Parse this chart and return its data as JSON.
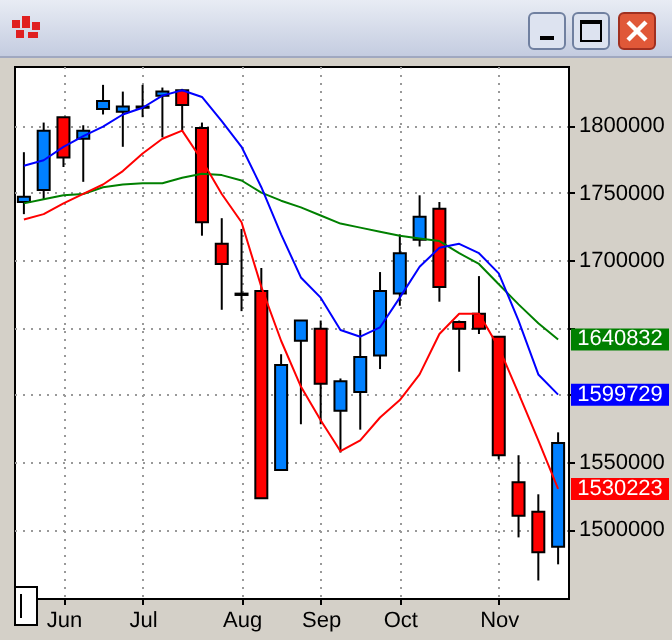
{
  "chart_data": {
    "type": "candlestick",
    "categories": [
      null,
      null,
      "Jun",
      null,
      null,
      null,
      "Jul",
      null,
      null,
      null,
      null,
      "Aug",
      null,
      null,
      null,
      "Sep",
      null,
      null,
      null,
      "Oct",
      null,
      null,
      null,
      null,
      "Nov",
      null,
      null,
      null
    ],
    "ohlc": [
      [
        1743000,
        1780000,
        1734000,
        1747000
      ],
      [
        1752000,
        1802000,
        1745000,
        1796000
      ],
      [
        1806000,
        1806000,
        1769000,
        1776000
      ],
      [
        1790000,
        1800000,
        1758000,
        1796000
      ],
      [
        1812000,
        1830000,
        1808000,
        1818000
      ],
      [
        1810000,
        1825000,
        1784000,
        1814000
      ],
      [
        1813000,
        1830000,
        1806000,
        1814000
      ],
      [
        1822000,
        1828000,
        1791000,
        1825000
      ],
      [
        1826000,
        1827000,
        1796000,
        1815000
      ],
      [
        1798000,
        1802000,
        1718000,
        1728000
      ],
      [
        1712000,
        1731000,
        1663000,
        1697000
      ],
      [
        1675000,
        1723000,
        1662000,
        1674000
      ],
      [
        1677000,
        1694000,
        1523000,
        1523000
      ],
      [
        1544000,
        1630000,
        1544000,
        1622000
      ],
      [
        1640000,
        1655000,
        1578000,
        1655000
      ],
      [
        1649000,
        1655000,
        1578000,
        1608000
      ],
      [
        1588000,
        1612000,
        1557000,
        1610000
      ],
      [
        1602000,
        1648000,
        1574000,
        1628000
      ],
      [
        1629000,
        1691000,
        1619000,
        1677000
      ],
      [
        1675000,
        1719000,
        1666000,
        1705000
      ],
      [
        1715000,
        1748000,
        1710000,
        1732000
      ],
      [
        1738000,
        1743000,
        1669000,
        1680000
      ],
      [
        1654000,
        1655000,
        1617000,
        1649000
      ],
      [
        1660000,
        1688000,
        1645000,
        1649000
      ],
      [
        1643000,
        1643000,
        1552000,
        1555000
      ],
      [
        1535000,
        1555000,
        1494000,
        1510000
      ],
      [
        1513000,
        1526000,
        1462000,
        1483000
      ],
      [
        1487000,
        1572000,
        1474000,
        1564000
      ]
    ],
    "colors": [
      "#0080ff",
      "#0080ff",
      "#ff0000",
      "#0080ff",
      "#0080ff",
      "#0080ff",
      "#0080ff",
      "#0080ff",
      "#ff0000",
      "#ff0000",
      "#ff0000",
      "#ff0000",
      "#ff0000",
      "#0080ff",
      "#0080ff",
      "#ff0000",
      "#0080ff",
      "#0080ff",
      "#0080ff",
      "#0080ff",
      "#0080ff",
      "#ff0000",
      "#ff0000",
      "#ff0000",
      "#ff0000",
      "#ff0000",
      "#ff0000",
      "#0080ff"
    ],
    "series": [
      {
        "type": "line",
        "color": "#008000",
        "values": [
          1742000,
          1745000,
          1748000,
          1749000,
          1754000,
          1756000,
          1757000,
          1757000,
          1761000,
          1764000,
          1763000,
          1759000,
          1750000,
          1744000,
          1739000,
          1733000,
          1727000,
          1724000,
          1721000,
          1718000,
          1716000,
          1714000,
          1705000,
          1697000,
          1682000,
          1667000,
          1653000,
          1641000
        ]
      },
      {
        "type": "line",
        "color": "#0000ff",
        "values": [
          1770000,
          1774000,
          1784000,
          1792000,
          1799000,
          1808000,
          1813000,
          1822000,
          1826000,
          1821000,
          1803000,
          1784000,
          1754000,
          1719000,
          1687000,
          1672000,
          1648000,
          1643000,
          1650000,
          1672000,
          1695000,
          1709000,
          1712000,
          1705000,
          1690000,
          1655000,
          1615000,
          1600000
        ]
      },
      {
        "type": "line",
        "color": "#ff0000",
        "values": [
          1730000,
          1734000,
          1742000,
          1749000,
          1756000,
          1766000,
          1779000,
          1790000,
          1796000,
          1774000,
          1749000,
          1728000,
          1680000,
          1640000,
          1606000,
          1581000,
          1558000,
          1566000,
          1583000,
          1596000,
          1615000,
          1645000,
          1660000,
          1660000,
          1635000,
          1601000,
          1566000,
          1530000
        ]
      }
    ],
    "annotations": [
      "1640832",
      "1599729",
      "1530223"
    ],
    "ylim": [
      1449000,
      1844000
    ],
    "yticks": [
      1500000,
      1550000,
      {
        "value": 1600000,
        "label": null
      },
      {
        "value": 1650000,
        "label": null
      },
      1700000,
      1750000,
      1800000
    ],
    "grid": true
  }
}
